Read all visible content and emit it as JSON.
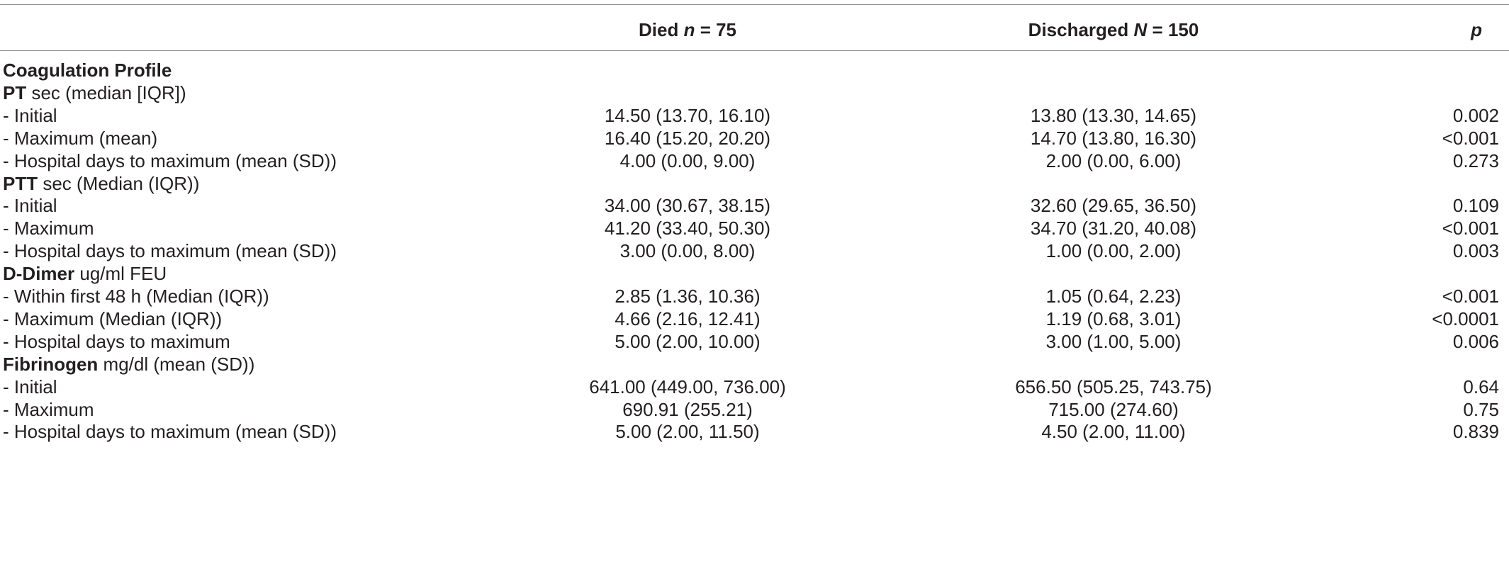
{
  "header": {
    "died_label": "Died",
    "died_n_symbol": "n",
    "died_n_value": "= 75",
    "discharged_label": "Discharged",
    "discharged_n_symbol": "N",
    "discharged_n_value": "= 150",
    "p_label": "p"
  },
  "rows": [
    {
      "kind": "section",
      "label": "Coagulation Profile"
    },
    {
      "kind": "group",
      "bold": "PT",
      "rest": " sec (median [IQR])"
    },
    {
      "kind": "data",
      "label": "- Initial",
      "died": "14.50 (13.70, 16.10)",
      "discharged": "13.80 (13.30, 14.65)",
      "p": "0.002"
    },
    {
      "kind": "data",
      "label": "- Maximum (mean)",
      "died": "16.40 (15.20, 20.20)",
      "discharged": "14.70 (13.80, 16.30)",
      "p": "<0.001"
    },
    {
      "kind": "data",
      "label": "- Hospital days to maximum (mean (SD))",
      "died": "4.00 (0.00, 9.00)",
      "discharged": "2.00 (0.00, 6.00)",
      "p": "0.273"
    },
    {
      "kind": "group",
      "bold": "PTT",
      "rest": " sec (Median (IQR))"
    },
    {
      "kind": "data",
      "label": "- Initial",
      "died": "34.00 (30.67, 38.15)",
      "discharged": "32.60 (29.65, 36.50)",
      "p": "0.109"
    },
    {
      "kind": "data",
      "label": "- Maximum",
      "died": "41.20 (33.40, 50.30)",
      "discharged": "34.70 (31.20, 40.08)",
      "p": "<0.001"
    },
    {
      "kind": "data",
      "label": "- Hospital days to maximum (mean (SD))",
      "died": "3.00 (0.00, 8.00)",
      "discharged": "1.00 (0.00, 2.00)",
      "p": "0.003"
    },
    {
      "kind": "group",
      "bold": "D-Dimer",
      "rest": " ug/ml FEU"
    },
    {
      "kind": "data",
      "label": "- Within first 48 h (Median (IQR))",
      "died": "2.85 (1.36, 10.36)",
      "discharged": "1.05 (0.64, 2.23)",
      "p": "<0.001"
    },
    {
      "kind": "data",
      "label": "- Maximum (Median (IQR))",
      "died": "4.66 (2.16, 12.41)",
      "discharged": "1.19 (0.68, 3.01)",
      "p": "<0.0001"
    },
    {
      "kind": "data",
      "label": "- Hospital days to maximum",
      "died": "5.00 (2.00, 10.00)",
      "discharged": "3.00 (1.00, 5.00)",
      "p": "0.006"
    },
    {
      "kind": "group",
      "bold": "Fibrinogen",
      "rest": " mg/dl (mean (SD))"
    },
    {
      "kind": "data",
      "label": "- Initial",
      "died": "641.00 (449.00, 736.00)",
      "discharged": "656.50 (505.25, 743.75)",
      "p": "0.64"
    },
    {
      "kind": "data",
      "label": "- Maximum",
      "died": "690.91 (255.21)",
      "discharged": "715.00 (274.60)",
      "p": "0.75"
    },
    {
      "kind": "data",
      "label": "- Hospital days to maximum (mean (SD))",
      "died": "5.00 (2.00, 11.50)",
      "discharged": "4.50 (2.00, 11.00)",
      "p": "0.839"
    }
  ]
}
